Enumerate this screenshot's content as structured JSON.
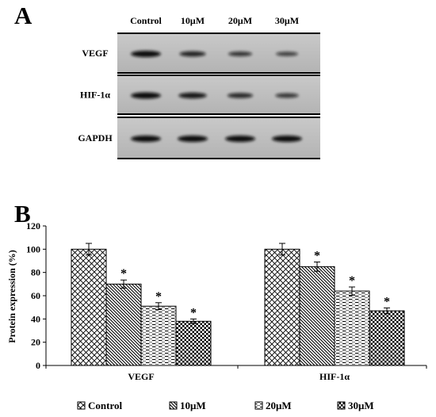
{
  "panels": {
    "a": "A",
    "b": "B"
  },
  "blot": {
    "lanes": [
      "Control",
      "10μM",
      "20μM",
      "30μM"
    ],
    "rows": [
      {
        "label": "VEGF",
        "intensity": [
          1.0,
          0.7,
          0.51,
          0.38
        ]
      },
      {
        "label": "HIF-1α",
        "intensity": [
          1.0,
          0.85,
          0.64,
          0.47
        ]
      },
      {
        "label": "GAPDH",
        "intensity": [
          1.0,
          1.0,
          1.0,
          1.0
        ]
      }
    ]
  },
  "chart_data": {
    "type": "bar",
    "ylabel": "Protein expression (%)",
    "xlabel": "",
    "ylim": [
      0,
      120
    ],
    "yticks": [
      0,
      20,
      40,
      60,
      80,
      100,
      120
    ],
    "categories": [
      "VEGF",
      "HIF-1α"
    ],
    "series": [
      {
        "name": "Control",
        "values": [
          100,
          100
        ],
        "err": [
          5,
          5
        ],
        "sig": [
          false,
          false
        ],
        "pattern": "diagonal-crosshatch"
      },
      {
        "name": "10μM",
        "values": [
          70,
          85
        ],
        "err": [
          3.5,
          4
        ],
        "sig": [
          true,
          true
        ],
        "pattern": "diagonal-lines"
      },
      {
        "name": "20μM",
        "values": [
          51,
          64
        ],
        "err": [
          3,
          3.5
        ],
        "sig": [
          true,
          true
        ],
        "pattern": "horizontal-dashes"
      },
      {
        "name": "30μM",
        "values": [
          38,
          47
        ],
        "err": [
          2,
          2.5
        ],
        "sig": [
          true,
          true
        ],
        "pattern": "checkerboard"
      }
    ],
    "significance_mark": "*",
    "legend_position": "bottom",
    "grid": false
  }
}
